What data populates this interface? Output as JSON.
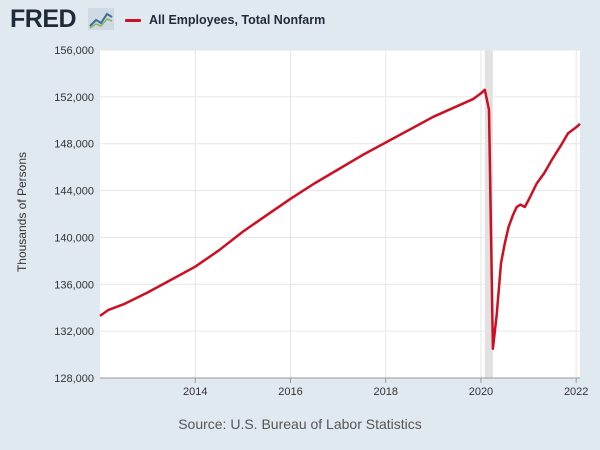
{
  "header": {
    "logo_text": "FRED",
    "legend_label": "All Employees, Total Nonfarm"
  },
  "source": "Source: U.S. Bureau of Labor Statistics",
  "colors": {
    "series": "#cc0f23",
    "recession": "#e1e1e1",
    "background": "#e1e9f0",
    "plot": "#ffffff"
  },
  "chart_data": {
    "type": "line",
    "title": "",
    "xlabel": "",
    "ylabel": "Thousands of Persons",
    "ylim": [
      128000,
      156000
    ],
    "yticks": [
      128000,
      132000,
      136000,
      140000,
      144000,
      148000,
      152000,
      156000
    ],
    "ytick_labels": [
      "128,000",
      "132,000",
      "136,000",
      "140,000",
      "144,000",
      "148,000",
      "152,000",
      "156,000"
    ],
    "xlim": [
      2012.0,
      2022.08
    ],
    "xticks": [
      2014,
      2016,
      2018,
      2020,
      2022
    ],
    "xtick_labels": [
      "2014",
      "2016",
      "2018",
      "2020",
      "2022"
    ],
    "grid": true,
    "recession": [
      2020.08,
      2020.25
    ],
    "series": [
      {
        "name": "All Employees, Total Nonfarm",
        "x": [
          2012.0,
          2012.17,
          2012.5,
          2013.0,
          2013.5,
          2014.0,
          2014.5,
          2015.0,
          2015.5,
          2016.0,
          2016.5,
          2017.0,
          2017.5,
          2018.0,
          2018.5,
          2019.0,
          2019.5,
          2019.83,
          2020.0,
          2020.08,
          2020.17,
          2020.25,
          2020.33,
          2020.42,
          2020.5,
          2020.58,
          2020.67,
          2020.75,
          2020.83,
          2020.92,
          2021.0,
          2021.17,
          2021.33,
          2021.5,
          2021.67,
          2021.83,
          2022.0,
          2022.08
        ],
        "y": [
          133300,
          133800,
          134300,
          135300,
          136400,
          137500,
          138900,
          140500,
          141900,
          143300,
          144600,
          145800,
          147000,
          148100,
          149200,
          150300,
          151200,
          151800,
          152300,
          152600,
          150900,
          130500,
          133400,
          137800,
          139500,
          140900,
          141900,
          142600,
          142800,
          142600,
          143200,
          144600,
          145500,
          146700,
          147800,
          148900,
          149400,
          149700
        ]
      }
    ]
  }
}
